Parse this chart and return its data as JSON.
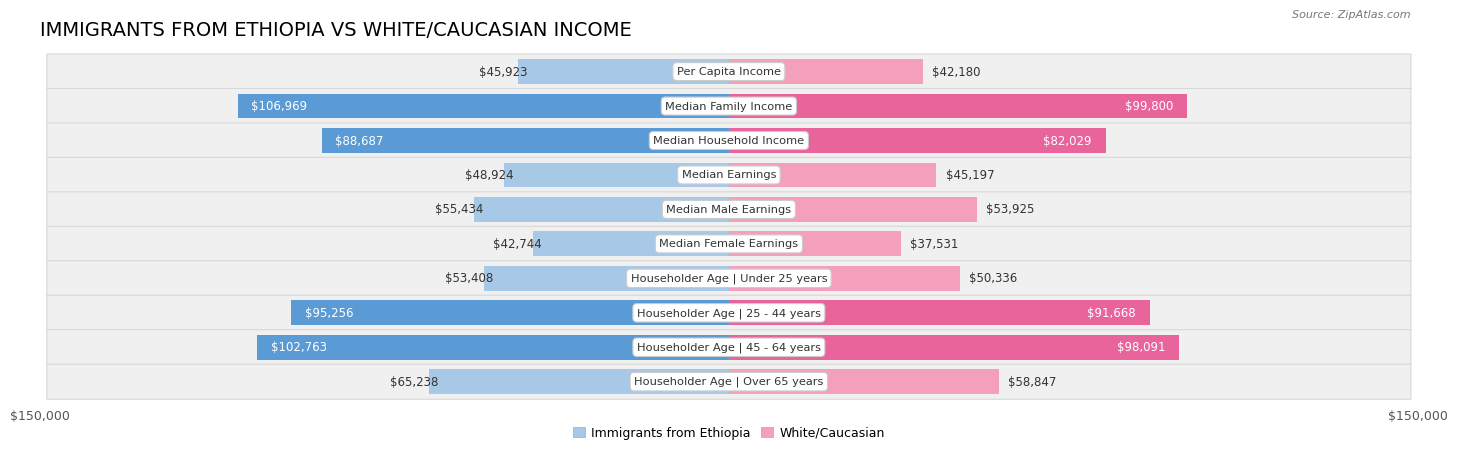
{
  "title": "IMMIGRANTS FROM ETHIOPIA VS WHITE/CAUCASIAN INCOME",
  "source": "Source: ZipAtlas.com",
  "categories": [
    "Per Capita Income",
    "Median Family Income",
    "Median Household Income",
    "Median Earnings",
    "Median Male Earnings",
    "Median Female Earnings",
    "Householder Age | Under 25 years",
    "Householder Age | 25 - 44 years",
    "Householder Age | 45 - 64 years",
    "Householder Age | Over 65 years"
  ],
  "ethiopia_values": [
    45923,
    106969,
    88687,
    48924,
    55434,
    42744,
    53408,
    95256,
    102763,
    65238
  ],
  "white_values": [
    42180,
    99800,
    82029,
    45197,
    53925,
    37531,
    50336,
    91668,
    98091,
    58847
  ],
  "max_value": 150000,
  "ethiopia_color_light": "#a8c8e8",
  "ethiopia_color_dark": "#5b9bd5",
  "white_color_light": "#f4a0bc",
  "white_color_dark": "#e8649a",
  "row_bg_color": "#f0f0f0",
  "row_bg_edge": "#d8d8d8",
  "bar_height": 0.72,
  "ethiopia_label": "Immigrants from Ethiopia",
  "white_label": "White/Caucasian",
  "title_fontsize": 14,
  "axis_label_fontsize": 9,
  "value_fontsize": 8.5,
  "category_fontsize": 8.2,
  "large_threshold": 70000
}
